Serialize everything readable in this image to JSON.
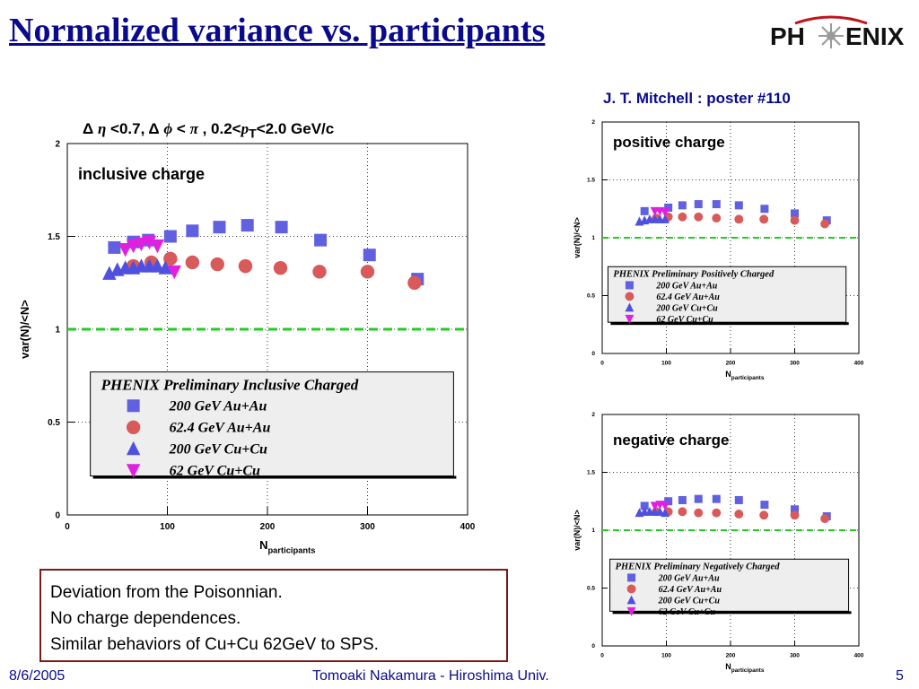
{
  "slide": {
    "title": "Normalized variance vs. participants",
    "logo_text_left": "PH",
    "logo_text_right": "ENIX",
    "poster_ref": "J. T. Mitchell : poster #110",
    "cuts": {
      "delta1": "Δ",
      "eta": "η",
      "part1": " <0.7,  ",
      "delta2": "Δ",
      "phi": "ϕ",
      "lt": " < ",
      "pi": "π",
      "part2": " , 0.2<",
      "p": "p",
      "t": "T",
      "part3": "<2.0 GeV/c"
    },
    "summary_lines": [
      "Deviation from the Poisonnian.",
      "No charge dependences.",
      "Similar behaviors of Cu+Cu 62GeV to SPS."
    ],
    "footer": {
      "date": "8/6/2005",
      "author": "Tomoaki Nakamura - Hiroshima Univ.",
      "page": "5"
    }
  },
  "colors": {
    "title": "#0a0a8c",
    "au200": "#6060e0",
    "au62": "#d85a5a",
    "cu200": "#5050e0",
    "cu62": "#e020e0",
    "poisson_line": "#22cc22",
    "legend_bg": "#eeeeee",
    "summary_border": "#7a1a1a"
  },
  "chart_data": [
    {
      "type": "scatter",
      "id": "inclusive",
      "panel_label": "inclusive charge",
      "xlabel": "N",
      "xlabel_sub": "participants",
      "ylabel": "var(N)/<N>",
      "xlim": [
        0,
        400
      ],
      "ylim": [
        0,
        2
      ],
      "xticks": [
        0,
        100,
        200,
        300,
        400
      ],
      "yticks": [
        0,
        0.5,
        1,
        1.5,
        2
      ],
      "ytick_labels": [
        "0",
        "0.5",
        "1",
        "1.5",
        "2"
      ],
      "grid": true,
      "reference_line_y": 1,
      "legend_title": "PHENIX Preliminary Inclusive Charged",
      "series": [
        {
          "name": "200 GeV Au+Au",
          "marker": "square",
          "x": [
            47,
            66,
            81,
            103,
            125,
            152,
            180,
            214,
            253,
            302,
            350
          ],
          "y": [
            1.44,
            1.47,
            1.48,
            1.5,
            1.53,
            1.55,
            1.56,
            1.55,
            1.48,
            1.4,
            1.27
          ]
        },
        {
          "name": "62.4 GeV Au+Au",
          "marker": "circle",
          "x": [
            66,
            84,
            103,
            125,
            150,
            178,
            213,
            252,
            300,
            347
          ],
          "y": [
            1.34,
            1.36,
            1.38,
            1.36,
            1.35,
            1.34,
            1.33,
            1.31,
            1.31,
            1.25
          ]
        },
        {
          "name": "200 GeV Cu+Cu",
          "marker": "triangle-up",
          "x": [
            42,
            50,
            58,
            66,
            74,
            82,
            90,
            98
          ],
          "y": [
            1.3,
            1.32,
            1.33,
            1.33,
            1.34,
            1.34,
            1.34,
            1.33
          ]
        },
        {
          "name": "62 GeV Cu+Cu",
          "marker": "triangle-down",
          "x": [
            58,
            66,
            74,
            82,
            90,
            107
          ],
          "y": [
            1.43,
            1.45,
            1.46,
            1.47,
            1.45,
            1.31
          ]
        }
      ]
    },
    {
      "type": "scatter",
      "id": "positive",
      "panel_label": "positive charge",
      "xlabel": "N",
      "xlabel_sub": "participants",
      "ylabel": "var(N)/<N>",
      "xlim": [
        0,
        400
      ],
      "ylim": [
        0,
        2
      ],
      "xticks": [
        0,
        100,
        200,
        300,
        400
      ],
      "yticks": [
        0,
        0.5,
        1,
        1.5,
        2
      ],
      "ytick_labels": [
        "0",
        "0.5",
        "1",
        "1.5",
        "2"
      ],
      "grid": true,
      "reference_line_y": 1,
      "legend_title": "PHENIX Preliminary Positively Charged",
      "series": [
        {
          "name": "200 GeV Au+Au",
          "marker": "square",
          "x": [
            66,
            103,
            125,
            150,
            178,
            213,
            253,
            300,
            350
          ],
          "y": [
            1.23,
            1.26,
            1.28,
            1.29,
            1.29,
            1.28,
            1.25,
            1.21,
            1.15
          ]
        },
        {
          "name": "62.4 GeV Au+Au",
          "marker": "circle",
          "x": [
            84,
            103,
            125,
            150,
            178,
            213,
            252,
            300,
            347
          ],
          "y": [
            1.17,
            1.18,
            1.18,
            1.18,
            1.17,
            1.16,
            1.16,
            1.15,
            1.12
          ]
        },
        {
          "name": "200 GeV Cu+Cu",
          "marker": "triangle-up",
          "x": [
            58,
            66,
            74,
            82,
            90,
            98
          ],
          "y": [
            1.14,
            1.15,
            1.16,
            1.16,
            1.16,
            1.16
          ]
        },
        {
          "name": "62 GeV Cu+Cu",
          "marker": "triangle-down",
          "x": [
            82,
            90,
            98
          ],
          "y": [
            1.23,
            1.23,
            1.22
          ]
        }
      ]
    },
    {
      "type": "scatter",
      "id": "negative",
      "panel_label": "negative charge",
      "xlabel": "N",
      "xlabel_sub": "participants",
      "ylabel": "var(N)/<N>",
      "xlim": [
        0,
        400
      ],
      "ylim": [
        0,
        2
      ],
      "xticks": [
        0,
        100,
        200,
        300,
        400
      ],
      "yticks": [
        0,
        0.5,
        1,
        1.5,
        2
      ],
      "ytick_labels": [
        "0",
        "0.5",
        "1",
        "1.5",
        "2"
      ],
      "grid": true,
      "reference_line_y": 1,
      "legend_title": "PHENIX Preliminary Negatively Charged",
      "series": [
        {
          "name": "200 GeV Au+Au",
          "marker": "square",
          "x": [
            66,
            103,
            125,
            150,
            178,
            213,
            253,
            300,
            350
          ],
          "y": [
            1.21,
            1.25,
            1.26,
            1.27,
            1.27,
            1.26,
            1.22,
            1.18,
            1.12
          ]
        },
        {
          "name": "62.4 GeV Au+Au",
          "marker": "circle",
          "x": [
            84,
            103,
            125,
            150,
            178,
            213,
            252,
            300,
            347
          ],
          "y": [
            1.16,
            1.16,
            1.16,
            1.15,
            1.15,
            1.14,
            1.13,
            1.13,
            1.1
          ]
        },
        {
          "name": "200 GeV Cu+Cu",
          "marker": "triangle-up",
          "x": [
            58,
            66,
            74,
            82,
            90,
            98
          ],
          "y": [
            1.15,
            1.16,
            1.16,
            1.16,
            1.16,
            1.15
          ]
        },
        {
          "name": "62 GeV Cu+Cu",
          "marker": "triangle-down",
          "x": [
            82,
            90,
            98
          ],
          "y": [
            1.21,
            1.22,
            1.21
          ]
        }
      ]
    }
  ]
}
